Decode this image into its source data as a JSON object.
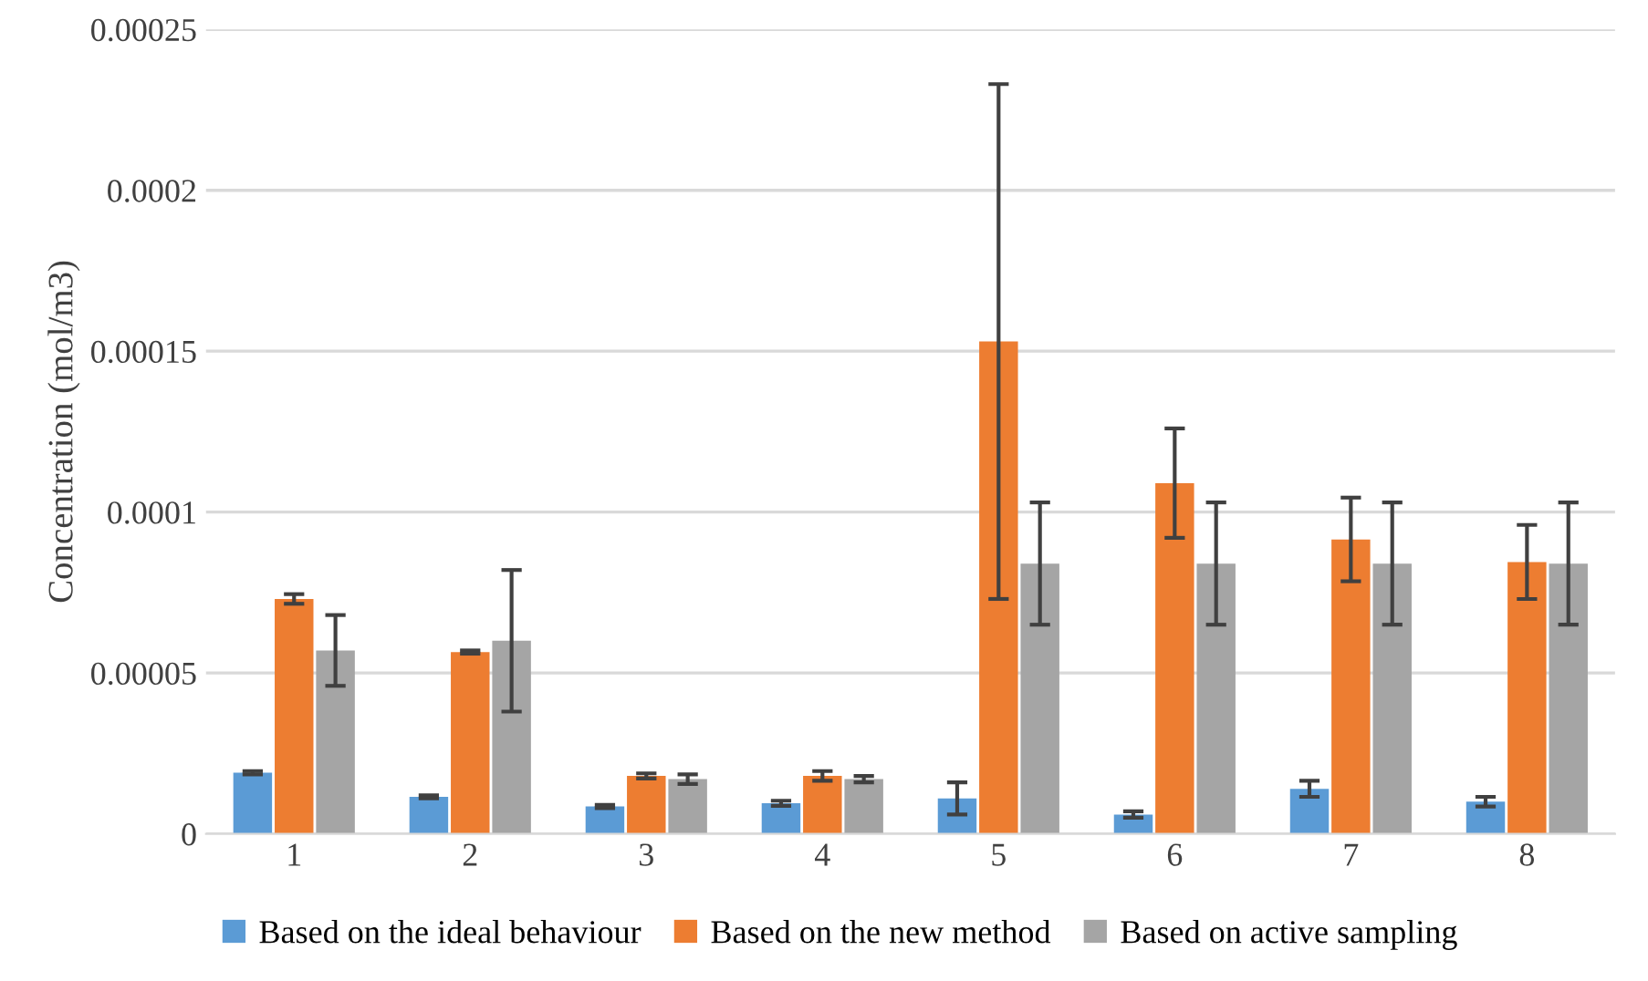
{
  "chart_data": {
    "type": "bar",
    "ylabel": "Concentration (mol/m3)",
    "categories": [
      "1",
      "2",
      "3",
      "4",
      "5",
      "6",
      "7",
      "8"
    ],
    "series": [
      {
        "name": "Based on the ideal behaviour",
        "color": "#5b9bd5",
        "values": [
          1.9e-05,
          1.15e-05,
          8.5e-06,
          9.5e-06,
          1.1e-05,
          6e-06,
          1.4e-05,
          1e-05
        ],
        "errors": [
          5e-07,
          5e-07,
          5e-07,
          8e-07,
          5e-06,
          1e-06,
          2.5e-06,
          1.5e-06
        ]
      },
      {
        "name": "Based on the new method",
        "color": "#ed7d31",
        "values": [
          7.3e-05,
          5.65e-05,
          1.8e-05,
          1.8e-05,
          0.000153,
          0.000109,
          9.15e-05,
          8.45e-05
        ],
        "errors": [
          1.5e-06,
          5e-07,
          8e-07,
          1.5e-06,
          8e-05,
          1.7e-05,
          1.3e-05,
          1.15e-05
        ]
      },
      {
        "name": "Based on active sampling",
        "color": "#a5a5a5",
        "values": [
          5.7e-05,
          6e-05,
          1.7e-05,
          1.7e-05,
          8.4e-05,
          8.4e-05,
          8.4e-05,
          8.4e-05
        ],
        "errors": [
          1.1e-05,
          2.2e-05,
          1.5e-06,
          1e-06,
          1.9e-05,
          1.9e-05,
          1.9e-05,
          1.9e-05
        ]
      }
    ],
    "ylim": [
      0,
      0.00025
    ],
    "yticks": [
      {
        "value": 0,
        "label": "0"
      },
      {
        "value": 5e-05,
        "label": "0.00005"
      },
      {
        "value": 0.0001,
        "label": "0.0001"
      },
      {
        "value": 0.00015,
        "label": "0.00015"
      },
      {
        "value": 0.0002,
        "label": "0.0002"
      },
      {
        "value": 0.00025,
        "label": "0.00025"
      }
    ],
    "grid": "y",
    "legend": "bottom"
  }
}
